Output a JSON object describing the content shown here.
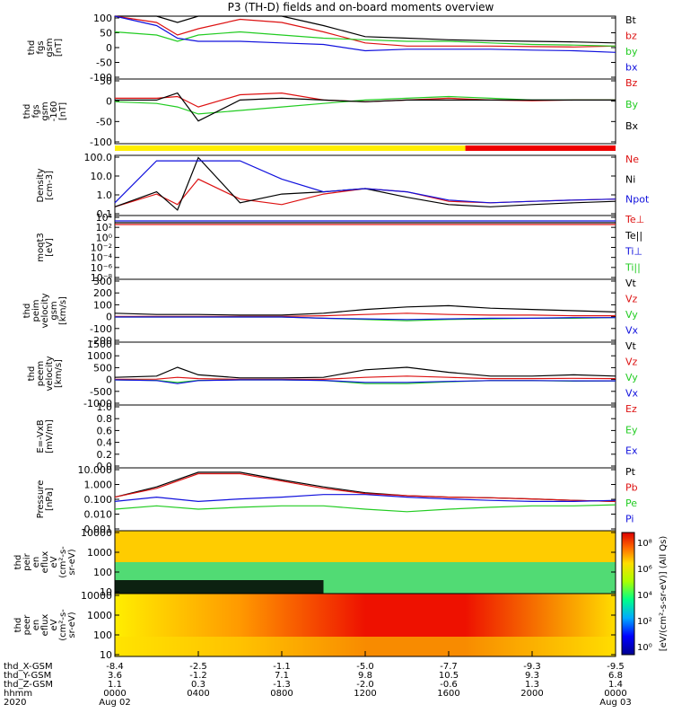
{
  "title": "P3 (TH-D) fields and on-board moments overview",
  "colors": {
    "black": "#000000",
    "red": "#dd1111",
    "green": "#22cc22",
    "blue": "#1111dd",
    "bar_yellow": "#ffee00",
    "bar_red": "#ee0000"
  },
  "panels": [
    {
      "ylabel": [
        "thd",
        "fgs",
        "gsm",
        "[nT]"
      ],
      "ticks": [
        "100",
        "50",
        "0",
        "-50",
        "-100"
      ],
      "legend": [
        {
          "text": "Bt",
          "color": "#000000"
        },
        {
          "text": "bz",
          "color": "#dd1111"
        },
        {
          "text": "by",
          "color": "#22cc22"
        },
        {
          "text": "bx",
          "color": "#1111dd"
        }
      ]
    },
    {
      "ylabel": [
        "thd",
        "fgs",
        "gsm",
        "-160",
        "[nT]"
      ],
      "ticks": [
        "50",
        "0",
        "-50",
        "-100"
      ],
      "legend": [
        {
          "text": "Bz",
          "color": "#dd1111"
        },
        {
          "text": "By",
          "color": "#22cc22"
        },
        {
          "text": "Bx",
          "color": "#000000"
        }
      ]
    },
    {
      "ylabel": [
        "Density",
        "[cm-3]"
      ],
      "ticks": [
        "100.0",
        "10.0",
        "1.0",
        "0.1"
      ],
      "legend": [
        {
          "text": "Ne",
          "color": "#dd1111"
        },
        {
          "text": "Ni",
          "color": "#000000"
        },
        {
          "text": "Npot",
          "color": "#1111dd"
        }
      ]
    },
    {
      "ylabel": [
        "moqt3",
        "[eV]"
      ],
      "ticks": [
        "10⁴",
        "10²",
        "10⁰",
        "10⁻²",
        "10⁻⁴",
        "10⁻⁶",
        "10⁻⁸"
      ],
      "legend": [
        {
          "text": "Te⊥",
          "color": "#dd1111"
        },
        {
          "text": "Te||",
          "color": "#000000"
        },
        {
          "text": "Ti⊥",
          "color": "#1111dd"
        },
        {
          "text": "Ti||",
          "color": "#22cc22"
        }
      ]
    },
    {
      "ylabel": [
        "thd",
        "peim",
        "velocity",
        "gsm",
        "[km/s]"
      ],
      "ticks": [
        "300",
        "200",
        "100",
        "0",
        "-100",
        "-200"
      ],
      "legend": [
        {
          "text": "Vt",
          "color": "#000000"
        },
        {
          "text": "Vz",
          "color": "#dd1111"
        },
        {
          "text": "Vy",
          "color": "#22cc22"
        },
        {
          "text": "Vx",
          "color": "#1111dd"
        }
      ]
    },
    {
      "ylabel": [
        "thd",
        "peem",
        "velocity",
        "[km/s]"
      ],
      "ticks": [
        "1500",
        "1000",
        "500",
        "0",
        "-500",
        "-1000"
      ],
      "legend": [
        {
          "text": "Vt",
          "color": "#000000"
        },
        {
          "text": "Vz",
          "color": "#dd1111"
        },
        {
          "text": "Vy",
          "color": "#22cc22"
        },
        {
          "text": "Vx",
          "color": "#1111dd"
        }
      ]
    },
    {
      "ylabel": [
        "E=-VxB",
        "[mV/m]"
      ],
      "ticks": [
        "1.0",
        "0.8",
        "0.6",
        "0.4",
        "0.2",
        "0.0"
      ],
      "legend": [
        {
          "text": "Ez",
          "color": "#dd1111"
        },
        {
          "text": "Ey",
          "color": "#22cc22"
        },
        {
          "text": "Ex",
          "color": "#1111dd"
        }
      ]
    },
    {
      "ylabel": [
        "Pressure",
        "[nPa]"
      ],
      "ticks": [
        "10.000",
        "1.000",
        "0.100",
        "0.010",
        "0.001"
      ],
      "legend": [
        {
          "text": "Pt",
          "color": "#000000"
        },
        {
          "text": "Pb",
          "color": "#dd1111"
        },
        {
          "text": "Pe",
          "color": "#22cc22"
        },
        {
          "text": "Pi",
          "color": "#1111dd"
        }
      ]
    },
    {
      "ylabel": [
        "thd",
        "peir",
        "en",
        "eflux",
        "eV",
        "(cm²-s-",
        "sr-eV)"
      ],
      "ticks": [
        "10000",
        "1000",
        "100",
        "10"
      ],
      "legend": []
    },
    {
      "ylabel": [
        "thd",
        "peer",
        "en",
        "eflux",
        "eV",
        "(cm²-s-",
        "sr-eV)"
      ],
      "ticks": [
        "10000",
        "1000",
        "100",
        "10"
      ],
      "legend": []
    }
  ],
  "colorbar": {
    "ticks": [
      "10⁸",
      "10⁶",
      "10⁴",
      "10²",
      "10⁰"
    ],
    "label": "[eV/(cm²-s-sr-eV)] (All Qs)"
  },
  "xaxis": {
    "row_labels": [
      "thd_X-GSM",
      "thd_Y-GSM",
      "thd_Z-GSM",
      "hhmm",
      "2020"
    ],
    "columns": [
      [
        "-8.4",
        "3.6",
        "1.1",
        "0000",
        "Aug 02"
      ],
      [
        "-2.5",
        "-1.2",
        "0.3",
        "0400",
        ""
      ],
      [
        "-1.1",
        "7.1",
        "-1.3",
        "0800",
        ""
      ],
      [
        "-5.0",
        "9.8",
        "-2.0",
        "1200",
        ""
      ],
      [
        "-7.7",
        "10.5",
        "-0.6",
        "1600",
        ""
      ],
      [
        "-9.3",
        "9.3",
        "1.3",
        "2000",
        ""
      ],
      [
        "-9.5",
        "6.8",
        "1.4",
        "0000",
        "Aug 03"
      ]
    ]
  },
  "chart_data": {
    "type": "line",
    "title": "P3 (TH-D) fields and on-board moments overview",
    "x_range": [
      "2020-08-02 00:00",
      "2020-08-03 00:00"
    ],
    "x_tick_labels": [
      "0000",
      "0400",
      "0800",
      "1200",
      "1600",
      "2000",
      "0000"
    ],
    "panels": [
      {
        "ylabel": "thd fgs gsm [nT]",
        "ylim": [
          -100,
          100
        ],
        "x_hours": [
          0,
          2,
          3,
          4,
          6,
          8,
          10,
          12,
          14,
          16,
          18,
          20,
          22,
          24
        ],
        "series": [
          {
            "name": "Bt",
            "values": [
              100,
              100,
              80,
              100,
              100,
              100,
              70,
              35,
              30,
              25,
              22,
              20,
              18,
              15
            ]
          },
          {
            "name": "bz",
            "values": [
              100,
              80,
              40,
              60,
              90,
              80,
              50,
              15,
              5,
              5,
              5,
              3,
              2,
              5
            ]
          },
          {
            "name": "by",
            "values": [
              50,
              40,
              20,
              40,
              50,
              40,
              30,
              25,
              20,
              20,
              15,
              10,
              8,
              5
            ]
          },
          {
            "name": "bx",
            "values": [
              100,
              70,
              30,
              20,
              20,
              15,
              10,
              -10,
              -5,
              -5,
              -5,
              -8,
              -10,
              -15
            ]
          }
        ]
      },
      {
        "ylabel": "thd fgs gsm -160 [nT]",
        "ylim": [
          -125,
          60
        ],
        "x_hours": [
          0,
          2,
          3,
          4,
          6,
          8,
          10,
          12,
          14,
          16,
          18,
          20,
          22,
          24
        ],
        "series": [
          {
            "name": "Bz",
            "values": [
              5,
              5,
              10,
              -20,
              15,
              20,
              0,
              -5,
              0,
              5,
              0,
              -2,
              0,
              0
            ]
          },
          {
            "name": "By",
            "values": [
              -5,
              -10,
              -20,
              -40,
              -30,
              -20,
              -10,
              0,
              5,
              10,
              5,
              0,
              0,
              0
            ]
          },
          {
            "name": "Bx",
            "values": [
              0,
              0,
              20,
              -60,
              0,
              5,
              0,
              -5,
              0,
              0,
              0,
              0,
              0,
              0
            ]
          }
        ]
      },
      {
        "ylabel": "Density [cm-3]",
        "ylim": [
          0.1,
          200
        ],
        "log": true,
        "x_hours": [
          0,
          2,
          3,
          4,
          6,
          8,
          10,
          12,
          14,
          16,
          18,
          20,
          22,
          24
        ],
        "series": [
          {
            "name": "Ne",
            "values": [
              0.3,
              1.5,
              0.4,
              10,
              0.8,
              0.4,
              1.5,
              3,
              2,
              0.6,
              0.5,
              0.6,
              0.7,
              0.8
            ]
          },
          {
            "name": "Ni",
            "values": [
              0.3,
              2,
              0.2,
              150,
              0.5,
              1.5,
              2,
              3,
              1,
              0.4,
              0.3,
              0.4,
              0.5,
              0.6
            ]
          },
          {
            "name": "Npot",
            "values": [
              0.5,
              100,
              100,
              100,
              100,
              10,
              2,
              3,
              2,
              0.7,
              0.5,
              0.6,
              0.7,
              0.8
            ]
          }
        ]
      },
      {
        "ylabel": "thd peim velocity gsm [km/s]",
        "ylim": [
          -200,
          300
        ],
        "x_hours": [
          0,
          2,
          4,
          6,
          8,
          10,
          12,
          14,
          16,
          18,
          20,
          22,
          24
        ],
        "series": [
          {
            "name": "Vt",
            "values": [
              30,
              20,
              20,
              15,
              15,
              30,
              60,
              80,
              90,
              70,
              60,
              50,
              40
            ]
          },
          {
            "name": "Vz",
            "values": [
              5,
              5,
              5,
              5,
              5,
              10,
              20,
              30,
              20,
              15,
              15,
              10,
              10
            ]
          },
          {
            "name": "Vy",
            "values": [
              0,
              0,
              0,
              0,
              0,
              -10,
              -20,
              -30,
              -20,
              -15,
              -10,
              -10,
              -5
            ]
          },
          {
            "name": "Vx",
            "values": [
              0,
              0,
              0,
              0,
              0,
              -10,
              -15,
              -20,
              -15,
              -10,
              -10,
              -5,
              -5
            ]
          }
        ]
      },
      {
        "ylabel": "thd peem velocity [km/s]",
        "ylim": [
          -1000,
          1500
        ],
        "x_hours": [
          0,
          2,
          3,
          4,
          6,
          8,
          10,
          12,
          14,
          16,
          18,
          20,
          22,
          24
        ],
        "series": [
          {
            "name": "Vt",
            "values": [
              100,
              150,
              500,
              200,
              80,
              80,
              100,
              400,
              500,
              300,
              150,
              150,
              200,
              150
            ]
          },
          {
            "name": "Vz",
            "values": [
              20,
              30,
              100,
              50,
              20,
              20,
              20,
              100,
              150,
              100,
              50,
              50,
              60,
              50
            ]
          },
          {
            "name": "Vy",
            "values": [
              0,
              -20,
              -100,
              -20,
              0,
              0,
              -20,
              -150,
              -150,
              -80,
              -30,
              -30,
              -50,
              -40
            ]
          },
          {
            "name": "Vx",
            "values": [
              0,
              -30,
              -150,
              -30,
              0,
              0,
              -20,
              -100,
              -100,
              -60,
              -30,
              -30,
              -40,
              -40
            ]
          }
        ]
      },
      {
        "ylabel": "Pressure [nPa]",
        "ylim": [
          0.001,
          20
        ],
        "log": true,
        "x_hours": [
          0,
          2,
          4,
          6,
          8,
          10,
          12,
          14,
          16,
          18,
          20,
          22,
          24
        ],
        "series": [
          {
            "name": "Pt",
            "values": [
              0.2,
              1.0,
              10,
              10,
              3,
              1.0,
              0.4,
              0.25,
              0.2,
              0.18,
              0.15,
              0.12,
              0.1
            ]
          },
          {
            "name": "Pb",
            "values": [
              0.2,
              0.8,
              8,
              8,
              2.5,
              0.8,
              0.35,
              0.25,
              0.2,
              0.18,
              0.15,
              0.12,
              0.1
            ]
          },
          {
            "name": "Pe",
            "values": [
              0.03,
              0.05,
              0.03,
              0.04,
              0.05,
              0.05,
              0.03,
              0.02,
              0.03,
              0.04,
              0.05,
              0.05,
              0.06
            ]
          },
          {
            "name": "Pi",
            "values": [
              0.1,
              0.2,
              0.1,
              0.15,
              0.2,
              0.3,
              0.3,
              0.2,
              0.15,
              0.12,
              0.1,
              0.1,
              0.12
            ]
          }
        ]
      }
    ]
  }
}
